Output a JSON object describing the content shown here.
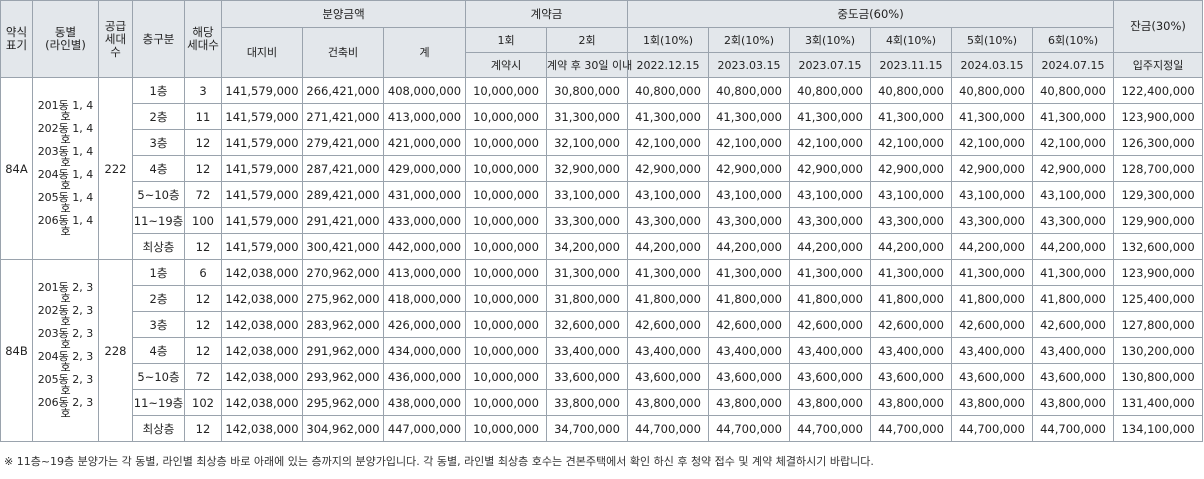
{
  "headers": {
    "type": "약식\n표기",
    "dong": "동별\n(라인별)",
    "supply": "공급\n세대\n수",
    "floor": "층구분",
    "units": "해당\n세대수",
    "price": "분양금액",
    "land": "대지비",
    "building": "건축비",
    "total": "계",
    "deposit": "계약금",
    "dep1": "1회",
    "dep2": "2회",
    "dep1_when": "계약시",
    "dep2_when": "계약 후 30일 이내",
    "middle": "중도금(60%)",
    "mid_labels": [
      "1회(10%)",
      "2회(10%)",
      "3회(10%)",
      "4회(10%)",
      "5회(10%)",
      "6회(10%)"
    ],
    "mid_dates": [
      "2022.12.15",
      "2023.03.15",
      "2023.07.15",
      "2023.11.15",
      "2024.03.15",
      "2024.07.15"
    ],
    "balance": "잔금(30%)",
    "balance_when": "입주지정일"
  },
  "groups": [
    {
      "type": "84A",
      "dong": "201동 1, 4호\n202동 1, 4호\n203동 1, 4호\n204동 1, 4호\n205동 1, 4호\n206동 1, 4호",
      "supply": "222",
      "rows": [
        {
          "floor": "1층",
          "units": "3",
          "land": "141,579,000",
          "building": "266,421,000",
          "total": "408,000,000",
          "dep1": "10,000,000",
          "dep2": "30,800,000",
          "mid": [
            "40,800,000",
            "40,800,000",
            "40,800,000",
            "40,800,000",
            "40,800,000",
            "40,800,000"
          ],
          "balance": "122,400,000"
        },
        {
          "floor": "2층",
          "units": "11",
          "land": "141,579,000",
          "building": "271,421,000",
          "total": "413,000,000",
          "dep1": "10,000,000",
          "dep2": "31,300,000",
          "mid": [
            "41,300,000",
            "41,300,000",
            "41,300,000",
            "41,300,000",
            "41,300,000",
            "41,300,000"
          ],
          "balance": "123,900,000"
        },
        {
          "floor": "3층",
          "units": "12",
          "land": "141,579,000",
          "building": "279,421,000",
          "total": "421,000,000",
          "dep1": "10,000,000",
          "dep2": "32,100,000",
          "mid": [
            "42,100,000",
            "42,100,000",
            "42,100,000",
            "42,100,000",
            "42,100,000",
            "42,100,000"
          ],
          "balance": "126,300,000"
        },
        {
          "floor": "4층",
          "units": "12",
          "land": "141,579,000",
          "building": "287,421,000",
          "total": "429,000,000",
          "dep1": "10,000,000",
          "dep2": "32,900,000",
          "mid": [
            "42,900,000",
            "42,900,000",
            "42,900,000",
            "42,900,000",
            "42,900,000",
            "42,900,000"
          ],
          "balance": "128,700,000"
        },
        {
          "floor": "5~10층",
          "units": "72",
          "land": "141,579,000",
          "building": "289,421,000",
          "total": "431,000,000",
          "dep1": "10,000,000",
          "dep2": "33,100,000",
          "mid": [
            "43,100,000",
            "43,100,000",
            "43,100,000",
            "43,100,000",
            "43,100,000",
            "43,100,000"
          ],
          "balance": "129,300,000"
        },
        {
          "floor": "11~19층",
          "units": "100",
          "land": "141,579,000",
          "building": "291,421,000",
          "total": "433,000,000",
          "dep1": "10,000,000",
          "dep2": "33,300,000",
          "mid": [
            "43,300,000",
            "43,300,000",
            "43,300,000",
            "43,300,000",
            "43,300,000",
            "43,300,000"
          ],
          "balance": "129,900,000"
        },
        {
          "floor": "최상층",
          "units": "12",
          "land": "141,579,000",
          "building": "300,421,000",
          "total": "442,000,000",
          "dep1": "10,000,000",
          "dep2": "34,200,000",
          "mid": [
            "44,200,000",
            "44,200,000",
            "44,200,000",
            "44,200,000",
            "44,200,000",
            "44,200,000"
          ],
          "balance": "132,600,000"
        }
      ]
    },
    {
      "type": "84B",
      "dong": "201동 2, 3호\n202동 2, 3호\n203동 2, 3호\n204동 2, 3호\n205동 2, 3호\n206동 2, 3호",
      "supply": "228",
      "rows": [
        {
          "floor": "1층",
          "units": "6",
          "land": "142,038,000",
          "building": "270,962,000",
          "total": "413,000,000",
          "dep1": "10,000,000",
          "dep2": "31,300,000",
          "mid": [
            "41,300,000",
            "41,300,000",
            "41,300,000",
            "41,300,000",
            "41,300,000",
            "41,300,000"
          ],
          "balance": "123,900,000"
        },
        {
          "floor": "2층",
          "units": "12",
          "land": "142,038,000",
          "building": "275,962,000",
          "total": "418,000,000",
          "dep1": "10,000,000",
          "dep2": "31,800,000",
          "mid": [
            "41,800,000",
            "41,800,000",
            "41,800,000",
            "41,800,000",
            "41,800,000",
            "41,800,000"
          ],
          "balance": "125,400,000"
        },
        {
          "floor": "3층",
          "units": "12",
          "land": "142,038,000",
          "building": "283,962,000",
          "total": "426,000,000",
          "dep1": "10,000,000",
          "dep2": "32,600,000",
          "mid": [
            "42,600,000",
            "42,600,000",
            "42,600,000",
            "42,600,000",
            "42,600,000",
            "42,600,000"
          ],
          "balance": "127,800,000"
        },
        {
          "floor": "4층",
          "units": "12",
          "land": "142,038,000",
          "building": "291,962,000",
          "total": "434,000,000",
          "dep1": "10,000,000",
          "dep2": "33,400,000",
          "mid": [
            "43,400,000",
            "43,400,000",
            "43,400,000",
            "43,400,000",
            "43,400,000",
            "43,400,000"
          ],
          "balance": "130,200,000"
        },
        {
          "floor": "5~10층",
          "units": "72",
          "land": "142,038,000",
          "building": "293,962,000",
          "total": "436,000,000",
          "dep1": "10,000,000",
          "dep2": "33,600,000",
          "mid": [
            "43,600,000",
            "43,600,000",
            "43,600,000",
            "43,600,000",
            "43,600,000",
            "43,600,000"
          ],
          "balance": "130,800,000"
        },
        {
          "floor": "11~19층",
          "units": "102",
          "land": "142,038,000",
          "building": "295,962,000",
          "total": "438,000,000",
          "dep1": "10,000,000",
          "dep2": "33,800,000",
          "mid": [
            "43,800,000",
            "43,800,000",
            "43,800,000",
            "43,800,000",
            "43,800,000",
            "43,800,000"
          ],
          "balance": "131,400,000"
        },
        {
          "floor": "최상층",
          "units": "12",
          "land": "142,038,000",
          "building": "304,962,000",
          "total": "447,000,000",
          "dep1": "10,000,000",
          "dep2": "34,700,000",
          "mid": [
            "44,700,000",
            "44,700,000",
            "44,700,000",
            "44,700,000",
            "44,700,000",
            "44,700,000"
          ],
          "balance": "134,100,000"
        }
      ]
    }
  ],
  "note": "※ 11층~19층 분양가는 각 동별, 라인별 최상층 바로 아래에 있는 층까지의 분양가입니다. 각 동별, 라인별 최상층 호수는 견본주택에서 확인 하신 후 청약 접수 및 계약 체결하시기 바랍니다."
}
